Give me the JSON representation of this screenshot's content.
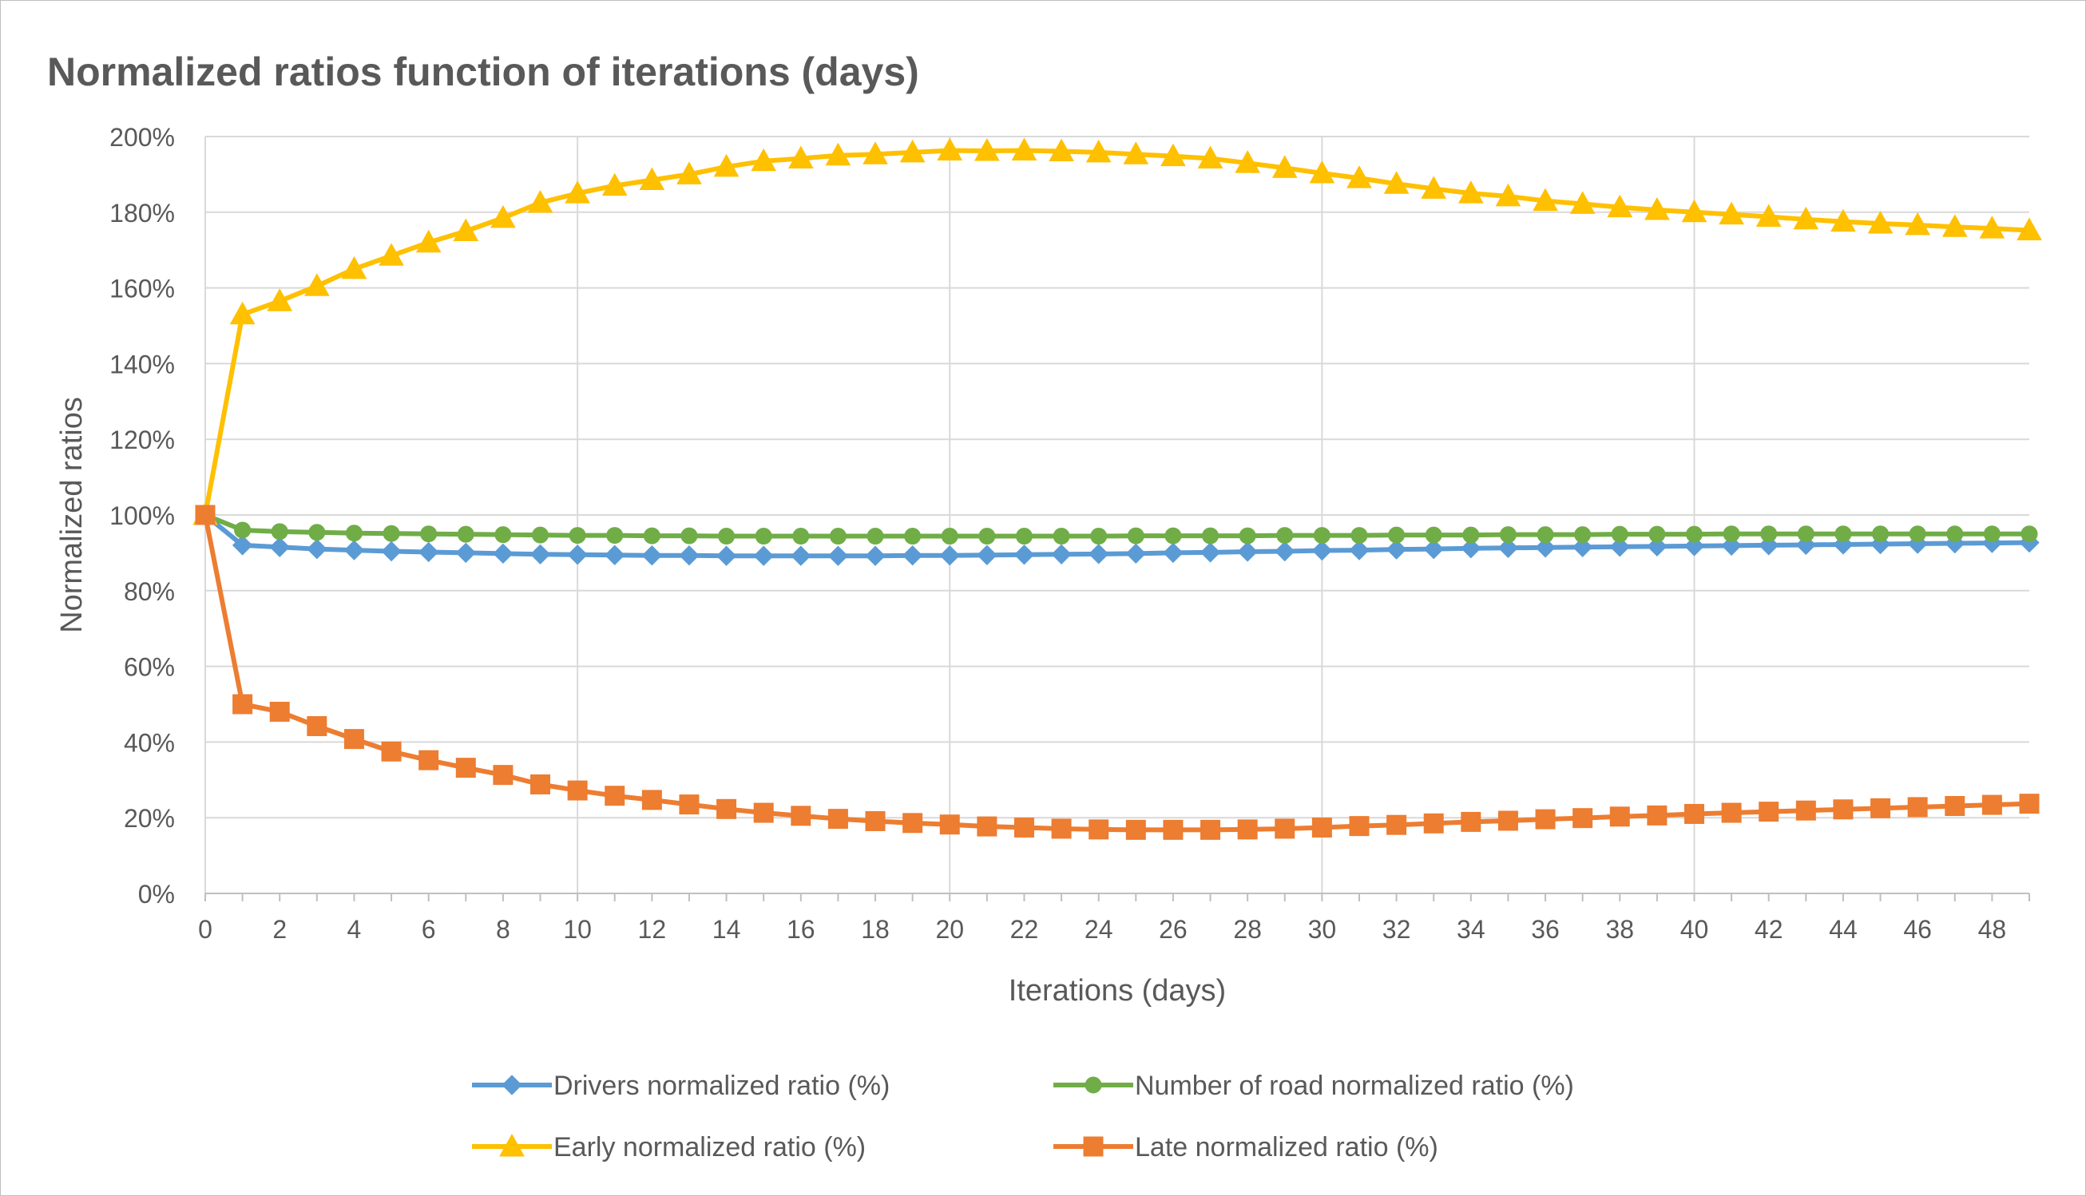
{
  "chart_data": {
    "type": "line",
    "title": "Normalized ratios function of iterations (days)",
    "xlabel": "Iterations (days)",
    "ylabel": "Normalized ratios",
    "xlim": [
      0,
      49
    ],
    "ylim": [
      0,
      200
    ],
    "x_ticks": [
      0,
      2,
      4,
      6,
      8,
      10,
      12,
      14,
      16,
      18,
      20,
      22,
      24,
      26,
      28,
      30,
      32,
      34,
      36,
      38,
      40,
      42,
      44,
      46,
      48
    ],
    "y_ticks": [
      0,
      20,
      40,
      60,
      80,
      100,
      120,
      140,
      160,
      180,
      200
    ],
    "y_tick_suffix": "%",
    "grid": true,
    "legend_position": "bottom",
    "x": [
      0,
      1,
      2,
      3,
      4,
      5,
      6,
      7,
      8,
      9,
      10,
      11,
      12,
      13,
      14,
      15,
      16,
      17,
      18,
      19,
      20,
      21,
      22,
      23,
      24,
      25,
      26,
      27,
      28,
      29,
      30,
      31,
      32,
      33,
      34,
      35,
      36,
      37,
      38,
      39,
      40,
      41,
      42,
      43,
      44,
      45,
      46,
      47,
      48,
      49
    ],
    "series": [
      {
        "name": "Drivers normalized ratio (%)",
        "color": "#5b9bd5",
        "marker": "diamond",
        "values": [
          100,
          92,
          91.5,
          91,
          90.7,
          90.4,
          90.2,
          90,
          89.8,
          89.6,
          89.5,
          89.4,
          89.3,
          89.3,
          89.2,
          89.2,
          89.2,
          89.2,
          89.2,
          89.3,
          89.3,
          89.4,
          89.5,
          89.6,
          89.7,
          89.8,
          90,
          90.1,
          90.3,
          90.4,
          90.6,
          90.7,
          90.9,
          91,
          91.2,
          91.3,
          91.4,
          91.5,
          91.6,
          91.7,
          91.8,
          91.9,
          92,
          92.1,
          92.2,
          92.3,
          92.4,
          92.5,
          92.6,
          92.7
        ]
      },
      {
        "name": "Number of road normalized ratio (%)",
        "color": "#70ad47",
        "marker": "circle",
        "values": [
          100,
          96,
          95.6,
          95.4,
          95.2,
          95.1,
          95,
          94.9,
          94.8,
          94.7,
          94.6,
          94.6,
          94.5,
          94.5,
          94.4,
          94.4,
          94.4,
          94.4,
          94.4,
          94.4,
          94.4,
          94.4,
          94.4,
          94.4,
          94.4,
          94.5,
          94.5,
          94.5,
          94.5,
          94.6,
          94.6,
          94.6,
          94.7,
          94.7,
          94.7,
          94.8,
          94.8,
          94.8,
          94.9,
          94.9,
          94.9,
          95,
          95,
          95,
          95,
          95,
          95,
          95,
          95,
          95
        ]
      },
      {
        "name": "Early normalized ratio (%)",
        "color": "#ffc000",
        "marker": "triangle",
        "values": [
          100,
          153,
          156.5,
          160.5,
          165,
          168.5,
          172,
          175,
          178.5,
          182.5,
          185,
          187,
          188.5,
          190,
          192,
          193.5,
          194.2,
          195,
          195.3,
          195.8,
          196.3,
          196.2,
          196.3,
          196.1,
          195.8,
          195.3,
          194.8,
          194.2,
          193,
          191.7,
          190.3,
          189,
          187.5,
          186.2,
          185,
          184.2,
          183,
          182.2,
          181.3,
          180.6,
          180,
          179.4,
          178.8,
          178.1,
          177.5,
          177,
          176.6,
          176.1,
          175.7,
          175.2
        ]
      },
      {
        "name": "Late normalized ratio (%)",
        "color": "#ed7d31",
        "marker": "square",
        "values": [
          100,
          50,
          48,
          44.2,
          40.8,
          37.5,
          35.2,
          33.2,
          31.3,
          28.8,
          27.2,
          25.8,
          24.7,
          23.5,
          22.3,
          21.3,
          20.5,
          19.7,
          19.1,
          18.6,
          18.2,
          17.7,
          17.4,
          17.1,
          16.9,
          16.8,
          16.8,
          16.8,
          16.9,
          17.1,
          17.4,
          17.8,
          18.1,
          18.5,
          18.9,
          19.2,
          19.6,
          19.9,
          20.3,
          20.6,
          21,
          21.3,
          21.6,
          21.9,
          22.2,
          22.5,
          22.8,
          23.1,
          23.4,
          23.7
        ]
      }
    ]
  }
}
